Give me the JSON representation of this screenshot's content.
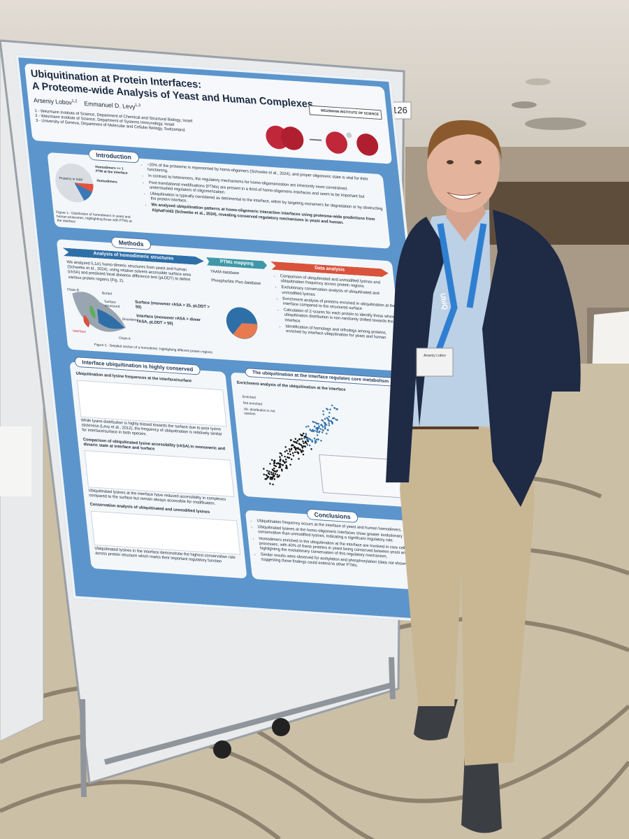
{
  "poster": {
    "number": "126",
    "title_line1": "Ubiquitination at Protein Interfaces:",
    "title_line2": "A Proteome-wide Analysis of Yeast and Human Complexes",
    "authors": [
      {
        "name": "Arseniy Lobov",
        "affiliations": "1,2"
      },
      {
        "name": "Emmanuel D. Levy",
        "affiliations": "1,3"
      }
    ],
    "affiliations": [
      "1 - Weizmann Institute of Science, Department of Chemical and Structural Biology, Israel",
      "2 - Weizmann Institute of Science, Department of Systems Immunology, Israel",
      "3 - University of Geneva, Department of Molecular and Cellular Biology, Switzerland"
    ],
    "logo": "WEIZMANN INSTITUTE OF SCIENCE",
    "introduction": {
      "heading": "Introduction",
      "pie_label": "Proteins in total",
      "pie_legend": [
        "Homodimers >= 1 PTM at the interface",
        "Homodimers"
      ],
      "bullets": [
        "~20% of the proteome is represented by homo-oligomers (Schweke et al., 2024), and proper oligomeric state is vital for their functioning.",
        "In contrast to heteromers, the regulatory mechanisms for homo-oligomerization are inherently more constrained.",
        "Post-translational modifications (PTMs) are present in a third of homo-oligomeric interfaces and seem to be important but understudied regulators of oligomerization.",
        "Ubiquitination is typically considered as detrimental to the interface, either by targeting monomers for degradation or by obstructing the protein interface.",
        "We analyzed ubiquitination patterns at homo-oligomeric interaction interfaces using proteome-wide predictions from AlphaFold2 (Schweke et al., 2024), revealing conserved regulatory mechanisms in yeast and human."
      ],
      "caption": "Figure 1 - Distribution of homodimers in yeast and human proteomes, highlighting those with PTMs at the interface"
    },
    "methods": {
      "heading": "Methods",
      "columns": [
        "Analysis of homodimeric structures",
        "PTMs mapping",
        "Data analysis"
      ],
      "analysis_text": "We analyzed 5,141 homo-dimeric structures from yeast and human (Schweke et al., 2024), using relative solvent-accessible surface area (rASA) and predicted local distance difference test (pLDDT) to define various protein regions (Fig. 2).",
      "regions": [
        "Surface (monomer rASA > 25, pLDDT > 50)",
        "Interface (monomer rASA > dimer rASA, pLDDT > 50)"
      ],
      "structure_labels": [
        "Chain B",
        "Buried",
        "Surface structured",
        "Disordered",
        "Interface",
        "Chain A"
      ],
      "databases": [
        "YAAM database",
        "PhosphoSite Plus database"
      ],
      "data_analysis": [
        "Comparison of ubiquitinated and unmodified lysines and ubiquitination frequency across protein regions",
        "Evolutionary conservation analysis of ubiquitinated and unmodified lysines",
        "Enrichment analysis of proteins enriched in ubiquitination at the interface compared to the structured surface",
        "Calculation of Z-scores for each protein to identify those where ubiquitination distribution is non-randomly shifted towards the interface",
        "Identification of homologs and orthologs among proteins, enriched by interface ubiquitination for yeast and human"
      ],
      "caption": "Figure 2 - Detailed section of a homodimer, highlighting different protein regions"
    },
    "conserved": {
      "heading": "Interface ubiquitination is highly conserved",
      "subheadings": [
        "Ubiquitination and lysine frequences at the interface/surface",
        "Comparison of ubiquitinated lysine accessibility (rASA) in monomeric and dimeric state at interface and surface",
        "Conservation analysis of ubiquitinated and unmodified lysines"
      ],
      "texts": [
        "While lysine distribution is highly biased towards the surface due to poor lysine stickiness (Levy et al., 2012), the frequency of ubiquitination is relatively similar for interface/surface in both species.",
        "Ubiquitinated lysines at the interface have reduced accessibility in complexes compared to the surface but remain always accessible for modification.",
        "Ubiquitinated lysines in the interface demonstrate the highest conservation rate across protein structure which marks their important regulatory function"
      ]
    },
    "metabolism": {
      "heading": "The ubiquitination at the interface regulates core metabolism",
      "subheading": "Enrichment analysis of the ubiquitination at the interface",
      "legend": [
        "Enriched",
        "Not enriched",
        "Ub. distribution is not random"
      ]
    },
    "conclusions": {
      "heading": "Conclusions",
      "bullets": [
        "Ubiquitination frequency occurs at the interface of yeast and human homodimers.",
        "Ubiquitinated lysines at the homo-oligomeric interfaces show greater evolutionary conservation than unmodified lysines, indicating a significant regulatory role.",
        "Homodimers enriched in the ubiquitination at the interface are involved in core cellular processes, with 40% of these proteins in yeast being conserved between yeast and human, highlighting the evolutionary conservation of this regulatory mechanism.",
        "Similar results were observed for acetylation and phosphorylation (data not shown), suggesting these findings could extend to other PTMs."
      ]
    }
  },
  "badge": {
    "lanyard": "UbiQ",
    "name": "Arseniy Lobov"
  }
}
